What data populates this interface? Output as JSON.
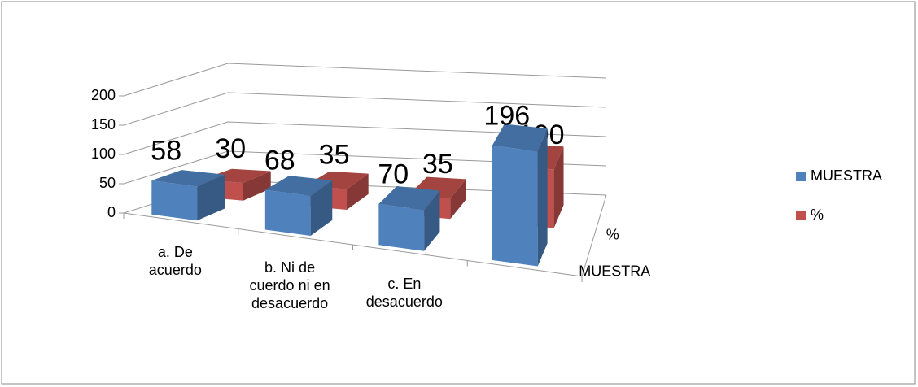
{
  "chart_data": {
    "type": "bar3d",
    "categories": [
      "a. De acuerdo",
      "b. Ni de cuerdo ni en desacuerdo",
      "c. En desacuerdo",
      null
    ],
    "series": [
      {
        "name": "MUESTRA",
        "color": "#4f81bd",
        "values": [
          58,
          68,
          70,
          196
        ]
      },
      {
        "name": "%",
        "color": "#c0504d",
        "values": [
          30,
          35,
          35,
          100
        ]
      }
    ],
    "ylim": [
      0,
      200
    ],
    "yticks": [
      0,
      50,
      100,
      150,
      200
    ],
    "grid": true,
    "legend": "right"
  }
}
